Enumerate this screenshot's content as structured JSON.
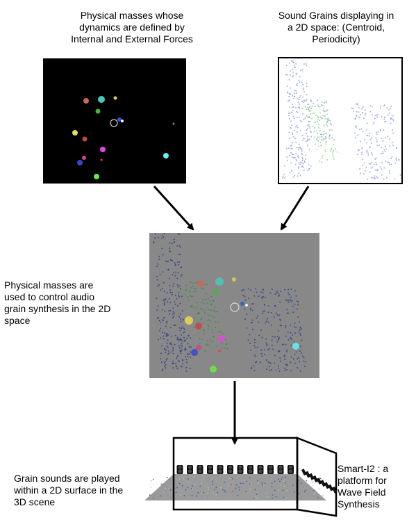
{
  "captions": {
    "physical_masses": "Physical masses whose\ndynamics are defined by\nInternal and External Forces",
    "sound_grains": "Sound Grains displaying in\na 2D space: (Centroid,\nPeriodicity)",
    "control": "Physical masses are\nused to control audio\ngrain synthesis in the 2D\nspace",
    "played": "Grain sounds are played\nwithin a 2D surface in the\n3D scene",
    "smart_i2": "Smart-I2 : a\nplatform for\nWave Field\nSynthesis"
  },
  "colors": {
    "masses_background": "#000000",
    "grains_background": "#ffffff",
    "combined_background": "#888888",
    "grain_blue": "#8a9ad8",
    "grain_green": "#7fcf7f",
    "arrow": "#000000"
  },
  "masses": [
    {
      "color": "#c86a5a"
    },
    {
      "color": "#4fc7b8"
    },
    {
      "color": "#e2d04a"
    },
    {
      "color": "#4fae46"
    },
    {
      "color": "#2f56d8"
    },
    {
      "color": "#ffffff"
    },
    {
      "color": "#e6d85a"
    },
    {
      "color": "#c04a40"
    },
    {
      "color": "#e04ad8"
    },
    {
      "color": "#3a48c8"
    },
    {
      "color": "#c84a8a"
    },
    {
      "color": "#e04a2a"
    },
    {
      "color": "#6ee84a"
    },
    {
      "color": "#6ff0f0"
    },
    {
      "color": "#9a8a2a"
    }
  ],
  "icons": {
    "cursor": "cursor-ring-icon",
    "speaker": "speaker-icon"
  }
}
